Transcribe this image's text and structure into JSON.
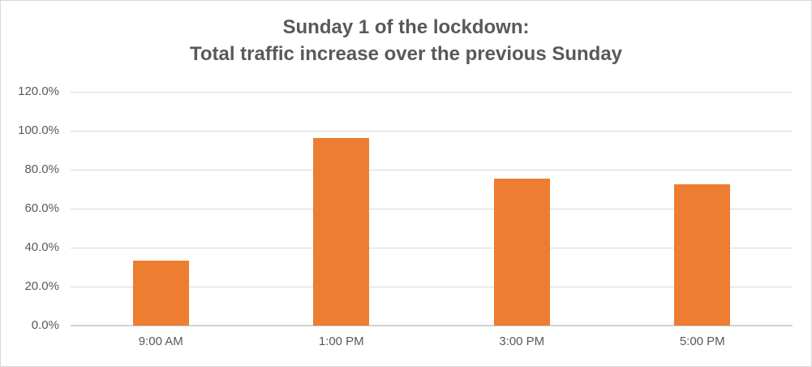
{
  "window": {
    "background": "#FFFFFF",
    "border_color": "#D9D9D9"
  },
  "chart_data": {
    "type": "bar",
    "title": "Sunday 1 of the lockdown:\nTotal traffic increase over the previous Sunday",
    "title_lines": [
      "Sunday 1 of the lockdown:",
      "Total traffic increase over the previous Sunday"
    ],
    "categories": [
      "9:00 AM",
      "1:00 PM",
      "3:00 PM",
      "5:00 PM"
    ],
    "values": [
      33.5,
      96.3,
      75.5,
      72.5
    ],
    "value_unit": "percent",
    "ylim": [
      0,
      120
    ],
    "ytick_step": 20,
    "ytick_labels": [
      "0.0%",
      "20.0%",
      "40.0%",
      "60.0%",
      "80.0%",
      "100.0%",
      "120.0%"
    ],
    "xlabel": "",
    "ylabel": "",
    "grid": true,
    "legend_position": "none",
    "colors": {
      "bar": "#ED7D31",
      "title_text": "#595959",
      "axis_text": "#595959",
      "gridline": "#DADADA",
      "axis_line": "#D2D2D2"
    }
  }
}
